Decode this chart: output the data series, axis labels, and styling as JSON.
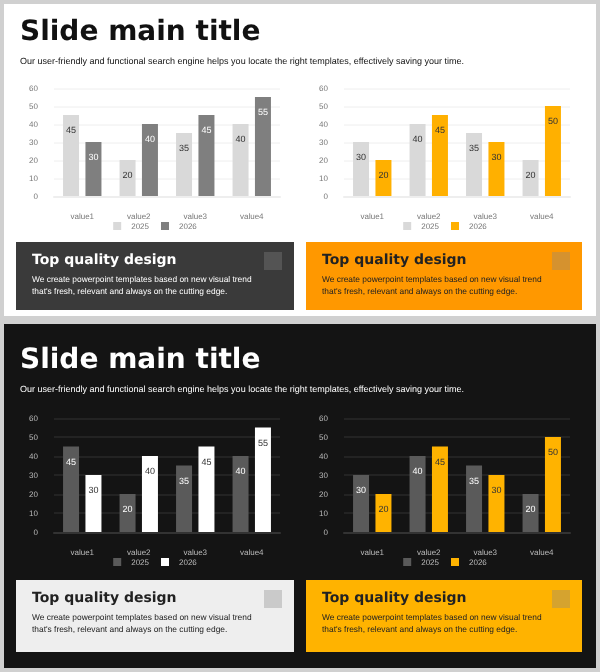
{
  "chart_data": [
    {
      "type": "other",
      "title": "Slide main title",
      "subtitle": "Our user-friendly and functional search engine helps you locate the right templates, effectively saving your time."
    },
    {
      "type": "bar",
      "categories": [
        "value1",
        "value2",
        "value3",
        "value4"
      ],
      "series": [
        {
          "name": "2025",
          "color": "#d9d9d9",
          "values": [
            45,
            20,
            35,
            40
          ]
        },
        {
          "name": "2026",
          "color": "#7f7f7f",
          "values": [
            30,
            40,
            45,
            55
          ]
        }
      ],
      "ylim": [
        0,
        60
      ],
      "yticks": [
        0,
        10,
        20,
        30,
        40,
        50,
        60
      ],
      "grid": "y",
      "legend": "bottom",
      "data_labels": true
    },
    {
      "type": "bar",
      "categories": [
        "value1",
        "value2",
        "value3",
        "value4"
      ],
      "series": [
        {
          "name": "2025",
          "color": "#d9d9d9",
          "values": [
            30,
            40,
            35,
            20
          ]
        },
        {
          "name": "2026",
          "color": "#ffb000",
          "values": [
            20,
            45,
            30,
            50
          ]
        }
      ],
      "ylim": [
        0,
        60
      ],
      "yticks": [
        0,
        10,
        20,
        30,
        40,
        50,
        60
      ],
      "grid": "y",
      "legend": "bottom",
      "data_labels": true
    },
    {
      "type": "other",
      "title": "Top quality design",
      "subtitle": "We create powerpoint templates based on new visual trend that's fresh, relevant and always on the cutting edge.",
      "color": "#3a3a3a"
    },
    {
      "type": "other",
      "title": "Top quality design",
      "subtitle": "We create powerpoint templates based on new visual trend that's fresh, relevant and always on the cutting edge.",
      "color": "#ff9800"
    },
    {
      "type": "other",
      "title": "Slide main title",
      "subtitle": "Our user-friendly and functional search engine helps you locate the right templates, effectively saving your time."
    },
    {
      "type": "bar",
      "categories": [
        "value1",
        "value2",
        "value3",
        "value4"
      ],
      "series": [
        {
          "name": "2025",
          "color": "#5a5a5a",
          "values": [
            45,
            20,
            35,
            40
          ]
        },
        {
          "name": "2026",
          "color": "#ffffff",
          "values": [
            30,
            40,
            45,
            55
          ]
        }
      ],
      "ylim": [
        0,
        60
      ],
      "yticks": [
        0,
        10,
        20,
        30,
        40,
        50,
        60
      ],
      "grid": "y",
      "legend": "bottom",
      "data_labels": true
    },
    {
      "type": "bar",
      "categories": [
        "value1",
        "value2",
        "value3",
        "value4"
      ],
      "series": [
        {
          "name": "2025",
          "color": "#5a5a5a",
          "values": [
            30,
            40,
            35,
            20
          ]
        },
        {
          "name": "2026",
          "color": "#ffb300",
          "values": [
            20,
            45,
            30,
            50
          ]
        }
      ],
      "ylim": [
        0,
        60
      ],
      "yticks": [
        0,
        10,
        20,
        30,
        40,
        50,
        60
      ],
      "grid": "y",
      "legend": "bottom",
      "data_labels": true
    },
    {
      "type": "other",
      "title": "Top quality design",
      "subtitle": "We create powerpoint templates based on new visual trend that's fresh, relevant and always on the cutting edge.",
      "color": "#eeeeee"
    },
    {
      "type": "other",
      "title": "Top quality design",
      "subtitle": "We create powerpoint templates based on new visual trend that's fresh, relevant and always on the cutting edge.",
      "color": "#ffb300"
    }
  ]
}
